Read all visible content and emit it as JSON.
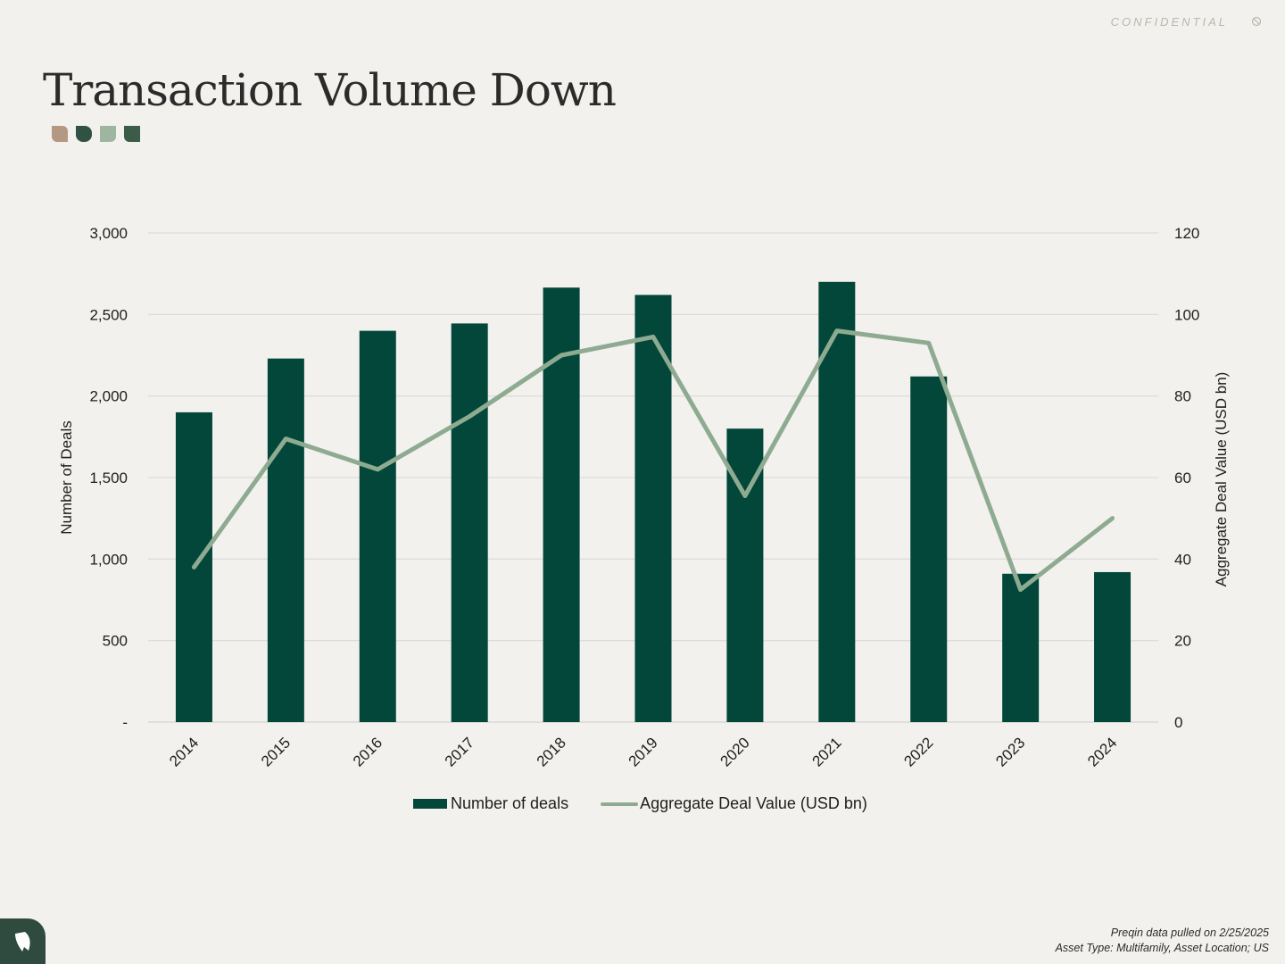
{
  "header": {
    "confidential_label": "CONFIDENTIAL",
    "confidential_icon": "no-entry-icon",
    "title": "Transaction Volume Down",
    "decor_colors": [
      "#b59883",
      "#2f5245",
      "#9eb6a0",
      "#3c5c4a"
    ]
  },
  "chart_data": {
    "type": "bar+line",
    "categories": [
      "2014",
      "2015",
      "2016",
      "2017",
      "2018",
      "2019",
      "2020",
      "2021",
      "2022",
      "2023",
      "2024"
    ],
    "series": [
      {
        "name": "Number of deals",
        "type": "bar",
        "axis": "left",
        "color": "#03473a",
        "values": [
          1900,
          2230,
          2400,
          2445,
          2665,
          2620,
          1800,
          2700,
          2120,
          910,
          920
        ]
      },
      {
        "name": "Aggregate Deal Value (USD bn)",
        "type": "line",
        "axis": "right",
        "color": "#8eab92",
        "values": [
          38,
          69.5,
          62,
          75,
          90,
          94.5,
          55.5,
          96,
          93,
          32.5,
          50
        ]
      }
    ],
    "ylabel": "Number of Deals",
    "y2label": "Aggregate Deal Value (USD bn)",
    "ylim": [
      0,
      3000
    ],
    "y2lim": [
      0,
      120
    ],
    "yticks": [
      "-",
      "500",
      "1,000",
      "1,500",
      "2,000",
      "2,500",
      "3,000"
    ],
    "y2ticks": [
      "0",
      "20",
      "40",
      "60",
      "80",
      "100",
      "120"
    ],
    "grid": true,
    "legend": "bottom"
  },
  "legend": {
    "bar_label": "Number of deals",
    "line_label": "Aggregate Deal Value (USD bn)"
  },
  "footer": {
    "line1": "Preqin data pulled on 2/25/2025",
    "line2": "Asset Type: Multifamily, Asset Location; US",
    "logo_icon": "leaf-logo-icon",
    "logo_color": "#2f4a3e"
  }
}
